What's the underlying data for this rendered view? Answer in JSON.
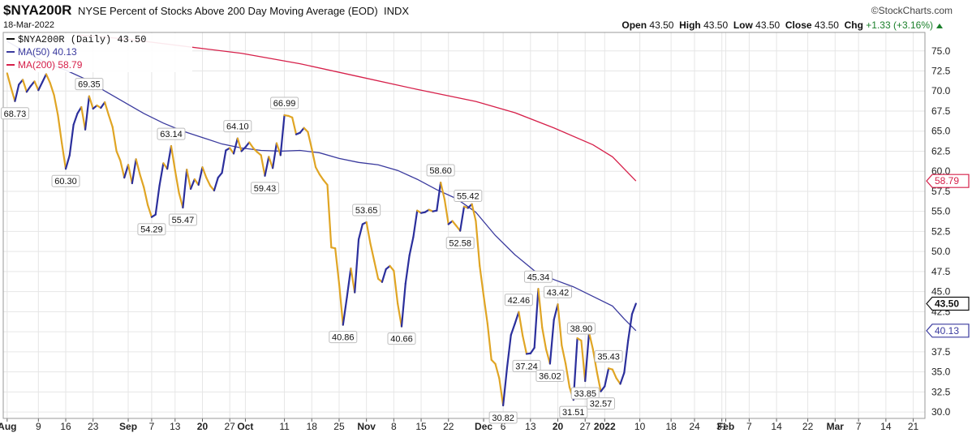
{
  "header": {
    "symbol": "$NYA200R",
    "description": "NYSE Percent of Stocks Above 200 Day Moving Average (EOD)",
    "exchange": "INDX",
    "date": "18-Mar-2022",
    "watermark": "©StockCharts.com",
    "open_label": "Open",
    "open": "43.50",
    "high_label": "High",
    "high": "43.50",
    "low_label": "Low",
    "low": "43.50",
    "close_label": "Close",
    "close": "43.50",
    "chg_label": "Chg",
    "chg": "+1.33 (+3.16%)"
  },
  "colors": {
    "price_up": "#2b2f9c",
    "price_down": "#e0a524",
    "ma50": "#3a3a9e",
    "ma200": "#d6204a",
    "grid": "#e6e6e6"
  },
  "chart_data": {
    "type": "line",
    "y_range": [
      29.2,
      77.3
    ],
    "y_ticks": [
      30.0,
      32.5,
      35.0,
      37.5,
      40.0,
      42.5,
      45.0,
      47.5,
      50.0,
      52.5,
      55.0,
      57.5,
      60.0,
      62.5,
      65.0,
      67.5,
      70.0,
      72.5,
      75.0
    ],
    "x_ticks": [
      {
        "label": "Aug",
        "d": 0
      },
      {
        "label": "9",
        "d": 8
      },
      {
        "label": "16",
        "d": 15
      },
      {
        "label": "23",
        "d": 22
      },
      {
        "label": "Sep",
        "d": 31
      },
      {
        "label": "7",
        "d": 37
      },
      {
        "label": "13",
        "d": 43
      },
      {
        "label": "20",
        "d": 50
      },
      {
        "label": "27",
        "d": 57
      },
      {
        "label": "Oct",
        "d": 61
      },
      {
        "label": "11",
        "d": 71
      },
      {
        "label": "18",
        "d": 78
      },
      {
        "label": "25",
        "d": 85
      },
      {
        "label": "Nov",
        "d": 92
      },
      {
        "label": "8",
        "d": 99
      },
      {
        "label": "15",
        "d": 106
      },
      {
        "label": "22",
        "d": 113
      },
      {
        "label": "Dec",
        "d": 122
      },
      {
        "label": "6",
        "d": 127
      },
      {
        "label": "13",
        "d": 134
      },
      {
        "label": "20",
        "d": 141
      },
      {
        "label": "27",
        "d": 148
      },
      {
        "label": "2022",
        "d": 153
      },
      {
        "label": "10",
        "d": 162
      },
      {
        "label": "18",
        "d": 170
      },
      {
        "label": "24",
        "d": 176
      },
      {
        "label": "31",
        "d": 183
      },
      {
        "label": "Feb",
        "d": 184
      },
      {
        "label": "7",
        "d": 190
      },
      {
        "label": "14",
        "d": 197
      },
      {
        "label": "22",
        "d": 205
      },
      {
        "label": "Mar",
        "d": 212
      },
      {
        "label": "7",
        "d": 218
      },
      {
        "label": "14",
        "d": 225
      },
      {
        "label": "21",
        "d": 232
      }
    ],
    "legend": [
      {
        "name": "$NYA200R (Daily) 43.50",
        "color": "#111111"
      },
      {
        "name": "MA(50) 40.13",
        "color": "#3a3a9e"
      },
      {
        "name": "MA(200) 58.79",
        "color": "#d6204a"
      }
    ],
    "series": [
      {
        "name": "$NYA200R (Daily)",
        "points": [
          [
            0,
            72.2
          ],
          [
            1,
            70.4
          ],
          [
            2,
            68.73
          ],
          [
            3,
            70.8
          ],
          [
            4,
            71.4
          ],
          [
            5,
            69.9
          ],
          [
            6,
            70.6
          ],
          [
            7,
            71.2
          ],
          [
            8,
            70.1
          ],
          [
            9,
            71.1
          ],
          [
            10,
            72.1
          ],
          [
            11,
            71.0
          ],
          [
            12,
            69.5
          ],
          [
            13,
            67.0
          ],
          [
            14,
            63.5
          ],
          [
            15,
            60.3
          ],
          [
            16,
            62.0
          ],
          [
            17,
            65.8
          ],
          [
            18,
            67.2
          ],
          [
            19,
            68.0
          ],
          [
            20,
            65.2
          ],
          [
            21,
            69.35
          ],
          [
            22,
            67.8
          ],
          [
            23,
            68.2
          ],
          [
            24,
            67.9
          ],
          [
            25,
            68.6
          ],
          [
            26,
            67.0
          ],
          [
            27,
            65.5
          ],
          [
            28,
            62.5
          ],
          [
            29,
            61.3
          ],
          [
            30,
            59.2
          ],
          [
            31,
            60.8
          ],
          [
            32,
            58.5
          ],
          [
            33,
            61.5
          ],
          [
            34,
            59.6
          ],
          [
            35,
            58.0
          ],
          [
            36,
            55.8
          ],
          [
            37,
            54.29
          ],
          [
            38,
            54.6
          ],
          [
            39,
            58.2
          ],
          [
            40,
            61.0
          ],
          [
            41,
            60.3
          ],
          [
            42,
            63.14
          ],
          [
            43,
            60.1
          ],
          [
            44,
            57.3
          ],
          [
            45,
            55.47
          ],
          [
            46,
            60.2
          ],
          [
            47,
            57.8
          ],
          [
            48,
            59.0
          ],
          [
            49,
            58.3
          ],
          [
            50,
            60.5
          ],
          [
            51,
            59.2
          ],
          [
            52,
            58.2
          ],
          [
            53,
            57.6
          ],
          [
            54,
            59.2
          ],
          [
            55,
            59.8
          ],
          [
            56,
            62.6
          ],
          [
            57,
            62.9
          ],
          [
            58,
            62.2
          ],
          [
            59,
            64.1
          ],
          [
            60,
            62.5
          ],
          [
            61,
            63.0
          ],
          [
            62,
            63.6
          ],
          [
            63,
            62.9
          ],
          [
            64,
            62.4
          ],
          [
            65,
            62.0
          ],
          [
            66,
            59.43
          ],
          [
            67,
            61.8
          ],
          [
            68,
            60.4
          ],
          [
            69,
            63.5
          ],
          [
            70,
            62.0
          ],
          [
            71,
            66.99
          ],
          [
            72,
            66.9
          ],
          [
            73,
            66.7
          ],
          [
            74,
            64.6
          ],
          [
            75,
            64.8
          ],
          [
            76,
            65.4
          ],
          [
            77,
            64.9
          ],
          [
            78,
            62.8
          ],
          [
            79,
            60.5
          ],
          [
            80,
            59.6
          ],
          [
            81,
            58.9
          ],
          [
            82,
            58.3
          ],
          [
            83,
            50.5
          ],
          [
            84,
            50.4
          ],
          [
            85,
            46.0
          ],
          [
            86,
            40.86
          ],
          [
            87,
            44.3
          ],
          [
            88,
            47.9
          ],
          [
            89,
            44.9
          ],
          [
            90,
            51.5
          ],
          [
            91,
            53.4
          ],
          [
            92,
            53.65
          ],
          [
            93,
            51.0
          ],
          [
            94,
            48.8
          ],
          [
            95,
            46.6
          ],
          [
            96,
            46.2
          ],
          [
            97,
            47.8
          ],
          [
            98,
            48.2
          ],
          [
            99,
            47.6
          ],
          [
            100,
            43.5
          ],
          [
            101,
            40.66
          ],
          [
            102,
            46.0
          ],
          [
            103,
            49.5
          ],
          [
            104,
            51.8
          ],
          [
            105,
            55.1
          ],
          [
            106,
            54.8
          ],
          [
            107,
            54.9
          ],
          [
            108,
            55.2
          ],
          [
            109,
            55.0
          ],
          [
            110,
            55.1
          ],
          [
            111,
            58.6
          ],
          [
            112,
            56.5
          ],
          [
            113,
            53.4
          ],
          [
            114,
            53.8
          ],
          [
            115,
            53.2
          ],
          [
            116,
            52.58
          ],
          [
            117,
            55.6
          ],
          [
            118,
            55.42
          ],
          [
            119,
            55.9
          ],
          [
            120,
            53.8
          ],
          [
            121,
            48.2
          ],
          [
            122,
            44.5
          ],
          [
            123,
            41.0
          ],
          [
            124,
            36.5
          ],
          [
            125,
            36.0
          ],
          [
            126,
            34.2
          ],
          [
            127,
            30.82
          ],
          [
            128,
            35.5
          ],
          [
            129,
            39.6
          ],
          [
            130,
            41.0
          ],
          [
            131,
            42.46
          ],
          [
            132,
            39.5
          ],
          [
            133,
            37.24
          ],
          [
            134,
            37.3
          ],
          [
            135,
            38.0
          ],
          [
            136,
            45.34
          ],
          [
            137,
            40.5
          ],
          [
            138,
            37.8
          ],
          [
            139,
            36.02
          ],
          [
            140,
            41.5
          ],
          [
            141,
            43.42
          ],
          [
            142,
            38.3
          ],
          [
            143,
            36.0
          ],
          [
            144,
            33.1
          ],
          [
            145,
            31.51
          ],
          [
            146,
            39.2
          ],
          [
            147,
            38.9
          ],
          [
            148,
            33.85
          ],
          [
            149,
            39.9
          ],
          [
            150,
            37.8
          ],
          [
            151,
            35.0
          ],
          [
            152,
            32.57
          ],
          [
            153,
            33.2
          ],
          [
            154,
            35.43
          ],
          [
            155,
            35.3
          ],
          [
            156,
            34.2
          ],
          [
            157,
            33.5
          ],
          [
            158,
            34.9
          ],
          [
            159,
            38.9
          ],
          [
            160,
            42.2
          ],
          [
            161,
            43.5
          ]
        ]
      },
      {
        "name": "MA(50)",
        "points": [
          [
            0,
            76.2
          ],
          [
            5,
            74.8
          ],
          [
            10,
            73.5
          ],
          [
            15,
            72.6
          ],
          [
            20,
            71.5
          ],
          [
            25,
            70.0
          ],
          [
            30,
            68.6
          ],
          [
            35,
            67.2
          ],
          [
            40,
            66.0
          ],
          [
            45,
            65.0
          ],
          [
            50,
            64.2
          ],
          [
            55,
            63.4
          ],
          [
            60,
            62.9
          ],
          [
            65,
            62.6
          ],
          [
            70,
            62.5
          ],
          [
            75,
            62.6
          ],
          [
            80,
            62.3
          ],
          [
            85,
            61.6
          ],
          [
            90,
            61.1
          ],
          [
            95,
            60.8
          ],
          [
            100,
            60.1
          ],
          [
            105,
            59.0
          ],
          [
            110,
            57.7
          ],
          [
            115,
            56.6
          ],
          [
            120,
            54.9
          ],
          [
            125,
            52.0
          ],
          [
            130,
            49.6
          ],
          [
            135,
            47.6
          ],
          [
            140,
            46.5
          ],
          [
            145,
            45.6
          ],
          [
            150,
            44.4
          ],
          [
            155,
            43.2
          ],
          [
            158,
            41.6
          ],
          [
            161,
            40.13
          ]
        ]
      },
      {
        "name": "MA(200)",
        "points": [
          [
            18,
            77.0
          ],
          [
            30,
            76.5
          ],
          [
            45,
            75.6
          ],
          [
            60,
            74.7
          ],
          [
            75,
            73.4
          ],
          [
            90,
            71.8
          ],
          [
            105,
            70.2
          ],
          [
            120,
            68.7
          ],
          [
            130,
            67.3
          ],
          [
            140,
            65.4
          ],
          [
            150,
            63.3
          ],
          [
            155,
            61.8
          ],
          [
            161,
            58.79
          ]
        ]
      }
    ],
    "annotations": [
      {
        "x": 2,
        "y": 68.73,
        "text": "68.73",
        "pos": "below"
      },
      {
        "x": 15,
        "y": 60.3,
        "text": "60.30",
        "pos": "below"
      },
      {
        "x": 21,
        "y": 69.35,
        "text": "69.35",
        "pos": "above"
      },
      {
        "x": 37,
        "y": 54.29,
        "text": "54.29",
        "pos": "below"
      },
      {
        "x": 42,
        "y": 63.14,
        "text": "63.14",
        "pos": "above"
      },
      {
        "x": 45,
        "y": 55.47,
        "text": "55.47",
        "pos": "below"
      },
      {
        "x": 59,
        "y": 64.1,
        "text": "64.10",
        "pos": "above"
      },
      {
        "x": 66,
        "y": 59.43,
        "text": "59.43",
        "pos": "below"
      },
      {
        "x": 71,
        "y": 66.99,
        "text": "66.99",
        "pos": "above"
      },
      {
        "x": 86,
        "y": 40.86,
        "text": "40.86",
        "pos": "below"
      },
      {
        "x": 92,
        "y": 53.65,
        "text": "53.65",
        "pos": "above"
      },
      {
        "x": 101,
        "y": 40.66,
        "text": "40.66",
        "pos": "below"
      },
      {
        "x": 111,
        "y": 58.6,
        "text": "58.60",
        "pos": "above"
      },
      {
        "x": 116,
        "y": 52.58,
        "text": "52.58",
        "pos": "below"
      },
      {
        "x": 118,
        "y": 55.42,
        "text": "55.42",
        "pos": "above"
      },
      {
        "x": 127,
        "y": 30.82,
        "text": "30.82",
        "pos": "below"
      },
      {
        "x": 131,
        "y": 42.46,
        "text": "42.46",
        "pos": "above"
      },
      {
        "x": 133,
        "y": 37.24,
        "text": "37.24",
        "pos": "below"
      },
      {
        "x": 136,
        "y": 45.34,
        "text": "45.34",
        "pos": "above"
      },
      {
        "x": 139,
        "y": 36.02,
        "text": "36.02",
        "pos": "below"
      },
      {
        "x": 141,
        "y": 43.42,
        "text": "43.42",
        "pos": "above"
      },
      {
        "x": 145,
        "y": 31.51,
        "text": "31.51",
        "pos": "below"
      },
      {
        "x": 147,
        "y": 38.9,
        "text": "38.90",
        "pos": "above"
      },
      {
        "x": 148,
        "y": 33.85,
        "text": "33.85",
        "pos": "below"
      },
      {
        "x": 152,
        "y": 32.57,
        "text": "32.57",
        "pos": "below"
      },
      {
        "x": 154,
        "y": 35.43,
        "text": "35.43",
        "pos": "above"
      }
    ],
    "right_axis_markers": [
      {
        "y": 58.79,
        "text": "58.79",
        "color": "#d6204a"
      },
      {
        "y": 43.5,
        "text": "43.50",
        "color": "#111111"
      },
      {
        "y": 40.13,
        "text": "40.13",
        "color": "#3a3a9e"
      }
    ]
  }
}
